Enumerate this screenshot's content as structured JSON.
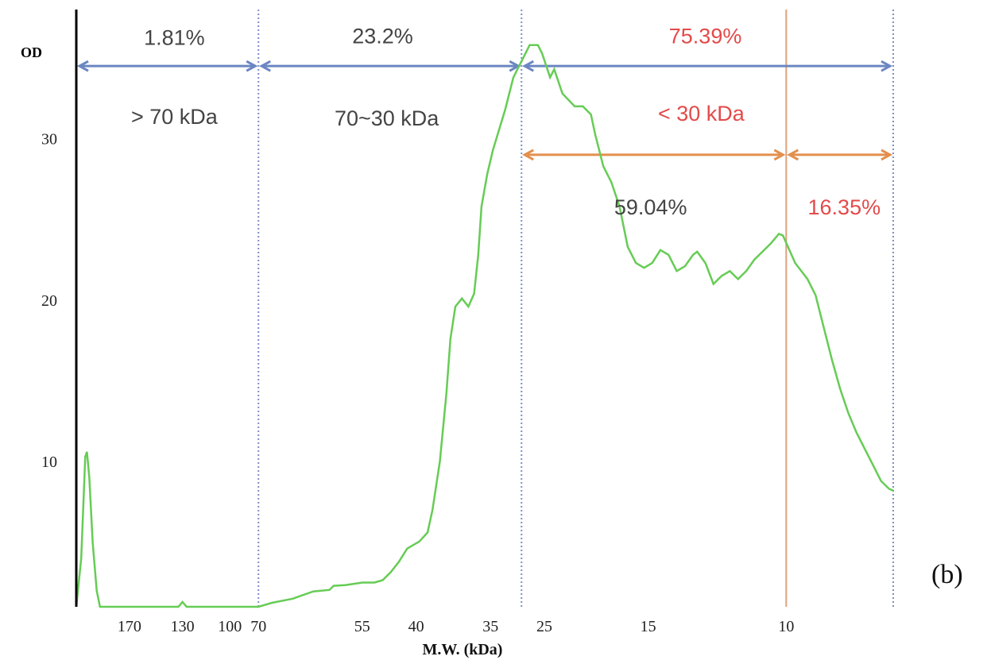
{
  "chart_data": {
    "type": "line",
    "title": "",
    "ylabel": "OD",
    "xlabel": "M.W. (kDa)",
    "panel_label": "(b)",
    "grid": false,
    "legend": "none",
    "ylim": [
      1,
      38
    ],
    "yticks": [
      10,
      20,
      30
    ],
    "x_axis_note": "marker positions along gel lane (0-100); tick labels are marker molecular weights in kDa",
    "xlim": [
      0,
      100
    ],
    "x_ticks": [
      {
        "pos": 6.5,
        "label": "170"
      },
      {
        "pos": 13.0,
        "label": "130"
      },
      {
        "pos": 18.8,
        "label": "100"
      },
      {
        "pos": 22.3,
        "label": "70"
      },
      {
        "pos": 35.0,
        "label": "55"
      },
      {
        "pos": 41.6,
        "label": "40"
      },
      {
        "pos": 50.7,
        "label": "35"
      },
      {
        "pos": 57.3,
        "label": "25"
      },
      {
        "pos": 70.0,
        "label": "15"
      },
      {
        "pos": 86.9,
        "label": "10"
      }
    ],
    "series": [
      {
        "name": "",
        "color": "#66cc55",
        "points": [
          [
            0.0,
            1.0
          ],
          [
            0.6,
            4.0
          ],
          [
            1.1,
            10.3
          ],
          [
            1.3,
            10.6
          ],
          [
            1.6,
            9.0
          ],
          [
            2.0,
            5.0
          ],
          [
            2.5,
            2.0
          ],
          [
            2.9,
            1.0
          ],
          [
            12.5,
            1.0
          ],
          [
            13.0,
            1.3
          ],
          [
            13.5,
            1.0
          ],
          [
            22.3,
            1.0
          ],
          [
            24.0,
            1.25
          ],
          [
            26.5,
            1.5
          ],
          [
            29.0,
            1.95
          ],
          [
            31.0,
            2.05
          ],
          [
            31.5,
            2.3
          ],
          [
            33.0,
            2.35
          ],
          [
            35.0,
            2.5
          ],
          [
            36.5,
            2.5
          ],
          [
            37.5,
            2.65
          ],
          [
            38.5,
            3.15
          ],
          [
            39.5,
            3.8
          ],
          [
            40.5,
            4.6
          ],
          [
            42.0,
            5.05
          ],
          [
            43.0,
            5.6
          ],
          [
            43.6,
            7.0
          ],
          [
            44.5,
            10.0
          ],
          [
            45.3,
            14.2
          ],
          [
            45.8,
            17.6
          ],
          [
            46.4,
            19.6
          ],
          [
            47.2,
            20.1
          ],
          [
            48.0,
            19.6
          ],
          [
            48.7,
            20.4
          ],
          [
            49.2,
            22.8
          ],
          [
            49.6,
            25.8
          ],
          [
            50.3,
            27.8
          ],
          [
            51.0,
            29.3
          ],
          [
            52.5,
            31.8
          ],
          [
            53.5,
            33.8
          ],
          [
            55.0,
            35.3
          ],
          [
            55.5,
            35.8
          ],
          [
            56.5,
            35.8
          ],
          [
            57.0,
            35.3
          ],
          [
            58.0,
            33.8
          ],
          [
            58.5,
            34.3
          ],
          [
            59.5,
            32.8
          ],
          [
            61.0,
            32.0
          ],
          [
            62.0,
            32.0
          ],
          [
            63.0,
            31.5
          ],
          [
            63.5,
            30.3
          ],
          [
            64.5,
            28.3
          ],
          [
            65.5,
            27.3
          ],
          [
            66.5,
            25.8
          ],
          [
            67.5,
            23.3
          ],
          [
            68.5,
            22.3
          ],
          [
            69.5,
            22.0
          ],
          [
            70.5,
            22.3
          ],
          [
            71.5,
            23.1
          ],
          [
            72.5,
            22.8
          ],
          [
            73.5,
            21.8
          ],
          [
            74.5,
            22.1
          ],
          [
            75.5,
            22.8
          ],
          [
            76.0,
            23.0
          ],
          [
            77.0,
            22.3
          ],
          [
            78.0,
            21.0
          ],
          [
            79.0,
            21.5
          ],
          [
            80.0,
            21.8
          ],
          [
            81.0,
            21.3
          ],
          [
            82.0,
            21.8
          ],
          [
            83.0,
            22.5
          ],
          [
            84.0,
            23.0
          ],
          [
            85.0,
            23.5
          ],
          [
            86.0,
            24.1
          ],
          [
            86.5,
            24.0
          ],
          [
            88.0,
            22.3
          ],
          [
            89.5,
            21.3
          ],
          [
            90.5,
            20.3
          ],
          [
            91.5,
            18.3
          ],
          [
            92.5,
            16.3
          ],
          [
            93.5,
            14.5
          ],
          [
            94.5,
            13.0
          ],
          [
            95.5,
            11.8
          ],
          [
            96.5,
            10.8
          ],
          [
            97.5,
            9.8
          ],
          [
            98.5,
            8.8
          ],
          [
            99.5,
            8.3
          ],
          [
            100.0,
            8.2
          ]
        ]
      }
    ],
    "dividers": [
      {
        "pos": 22.3,
        "color": "#7a8fc4"
      },
      {
        "pos": 54.5,
        "color": "#7a8fc4"
      },
      {
        "pos": 86.9,
        "color": "#dda27a",
        "solid": true
      },
      {
        "pos": 100.0,
        "color": "#7a8fc4"
      }
    ],
    "range_arrows": [
      {
        "from": 0.0,
        "to": 22.3,
        "y": 34.5,
        "color": "#6b86c2"
      },
      {
        "from": 22.3,
        "to": 54.5,
        "y": 34.5,
        "color": "#6b86c2"
      },
      {
        "from": 54.5,
        "to": 100.0,
        "y": 34.5,
        "color": "#6b86c2"
      },
      {
        "from": 54.5,
        "to": 86.9,
        "y": 29.0,
        "color": "#e38f4d"
      },
      {
        "from": 86.9,
        "to": 100.0,
        "y": 29.0,
        "color": "#e38f4d"
      }
    ],
    "annotations": [
      {
        "text": "1.81%",
        "x": 12.0,
        "y": 36.3,
        "color": "#444444"
      },
      {
        "text": "> 70 kDa",
        "x": 12.0,
        "y": 31.4,
        "color": "#444444"
      },
      {
        "text": "23.2%",
        "x": 37.5,
        "y": 36.4,
        "color": "#444444"
      },
      {
        "text": "70~30 kDa",
        "x": 38.0,
        "y": 31.3,
        "color": "#444444"
      },
      {
        "text": "75.39%",
        "x": 77.0,
        "y": 36.4,
        "color": "#e34a4a"
      },
      {
        "text": "< 30 kDa",
        "x": 76.5,
        "y": 31.6,
        "color": "#e34a4a"
      },
      {
        "text": "59.04%",
        "x": 70.3,
        "y": 25.8,
        "color": "#444444"
      },
      {
        "text": "16.35%",
        "x": 94.0,
        "y": 25.8,
        "color": "#e34a4a"
      }
    ]
  }
}
